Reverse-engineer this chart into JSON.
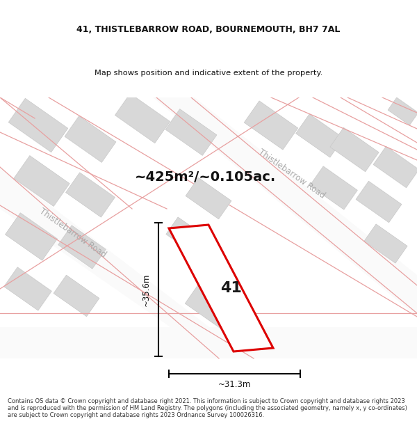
{
  "title_line1": "41, THISTLEBARROW ROAD, BOURNEMOUTH, BH7 7AL",
  "title_line2": "Map shows position and indicative extent of the property.",
  "area_text": "~425m²/~0.105ac.",
  "number_label": "41",
  "dim_vertical": "~35.6m",
  "dim_horizontal": "~31.3m",
  "road_label_upper": "Thistlebarrow Road",
  "road_label_lower": "Thistlebarrow Road",
  "footer_text": "Contains OS data © Crown copyright and database right 2021. This information is subject to Crown copyright and database rights 2023 and is reproduced with the permission of HM Land Registry. The polygons (including the associated geometry, namely x, y co-ordinates) are subject to Crown copyright and database rights 2023 Ordnance Survey 100026316.",
  "map_bg": "#f2f2f2",
  "plot_outline_color": "#dd0000",
  "plot_fill_color": "#ffffff",
  "building_fill": "#d8d8d8",
  "building_stroke": "#c8c8c8",
  "dim_line_color": "#000000",
  "road_line_color": "#e8a0a0",
  "road_fill_color": "#ffffff",
  "title_color": "#111111",
  "footer_color": "#333333"
}
